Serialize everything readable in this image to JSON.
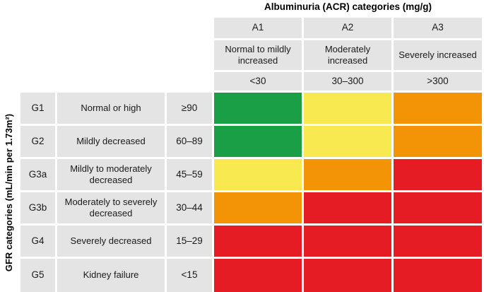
{
  "chart_data": {
    "type": "heatmap",
    "title": "Albuminuria (ACR) categories (mg/g)",
    "ylabel": "GFR categories (mL/min per 1.73m²)",
    "columns": [
      {
        "id": "A1",
        "label": "Normal to mildly increased",
        "range": "<30"
      },
      {
        "id": "A2",
        "label": "Moderately increased",
        "range": "30–300"
      },
      {
        "id": "A3",
        "label": "Severely increased",
        "range": ">300"
      }
    ],
    "rows": [
      {
        "id": "G1",
        "label": "Normal or high",
        "range": "≥90",
        "risk": [
          "green",
          "yellow",
          "orange"
        ]
      },
      {
        "id": "G2",
        "label": "Mildly decreased",
        "range": "60–89",
        "risk": [
          "green",
          "yellow",
          "orange"
        ]
      },
      {
        "id": "G3a",
        "label": "Mildly to moderately decreased",
        "range": "45–59",
        "risk": [
          "yellow",
          "orange",
          "red"
        ]
      },
      {
        "id": "G3b",
        "label": "Moderately to severely decreased",
        "range": "30–44",
        "risk": [
          "orange",
          "red",
          "red"
        ]
      },
      {
        "id": "G4",
        "label": "Severely decreased",
        "range": "15–29",
        "risk": [
          "red",
          "red",
          "red"
        ]
      },
      {
        "id": "G5",
        "label": "Kidney failure",
        "range": "<15",
        "risk": [
          "red",
          "red",
          "red"
        ]
      }
    ],
    "legend_position": "none",
    "grid": false
  },
  "colors": {
    "green": "#1a9e46",
    "yellow": "#f7e94f",
    "orange": "#f29405",
    "red": "#e51c23",
    "cell_gray": "#e4e4e4",
    "background": "#ffffff",
    "text": "#1a1a1a"
  }
}
